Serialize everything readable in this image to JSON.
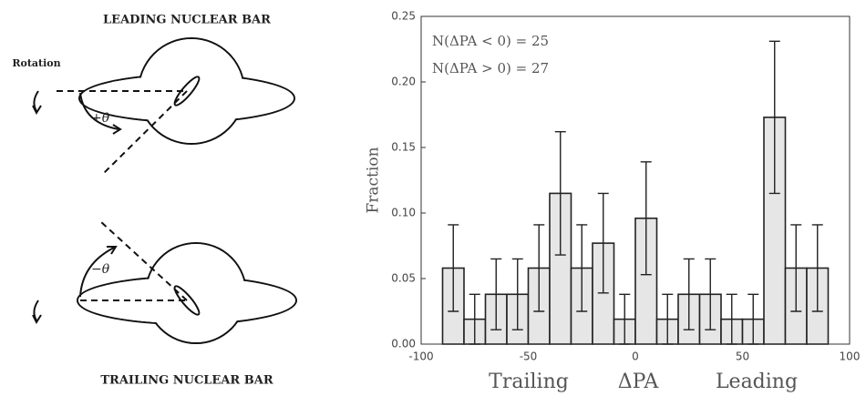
{
  "diagram": {
    "top_label": "LEADING NUCLEAR BAR",
    "rotation_label": "Rotation",
    "plus_theta": "+θ",
    "minus_theta": "−θ",
    "bottom_label": "TRAILING NUCLEAR BAR"
  },
  "chart_data": {
    "type": "histogram",
    "annotations": [
      "N(ΔPA < 0) = 25",
      "N(ΔPA > 0) = 27"
    ],
    "y_label": "Fraction",
    "x_label_parts": [
      "Trailing",
      "ΔPA",
      "Leading"
    ],
    "bins": [
      -90,
      -80,
      -70,
      -60,
      -50,
      -40,
      -30,
      -20,
      -10,
      0,
      10,
      20,
      30,
      40,
      50,
      60,
      70,
      80,
      90
    ],
    "values": [
      0.058,
      0.019,
      0.038,
      0.038,
      0.058,
      0.115,
      0.058,
      0.077,
      0.019,
      0.096,
      0.019,
      0.038,
      0.038,
      0.019,
      0.019,
      0.173,
      0.058,
      0.058
    ],
    "errors": [
      0.033,
      0.019,
      0.027,
      0.027,
      0.033,
      0.047,
      0.033,
      0.038,
      0.019,
      0.043,
      0.019,
      0.027,
      0.027,
      0.019,
      0.019,
      0.058,
      0.033,
      0.033
    ],
    "color": "#e6e6e6",
    "xlim": [
      -100,
      100
    ],
    "xticks": [
      -100,
      -50,
      0,
      50,
      100
    ],
    "ylim": [
      0,
      0.25
    ],
    "yticks": [
      {
        "value": 0,
        "label": "0.00"
      },
      {
        "value": 0.05,
        "label": "0.05"
      },
      {
        "value": 0.1,
        "label": "0.10"
      },
      {
        "value": 0.15,
        "label": "0.15"
      },
      {
        "value": 0.2,
        "label": "0.20"
      },
      {
        "value": 0.25,
        "label": "0.25"
      }
    ]
  }
}
